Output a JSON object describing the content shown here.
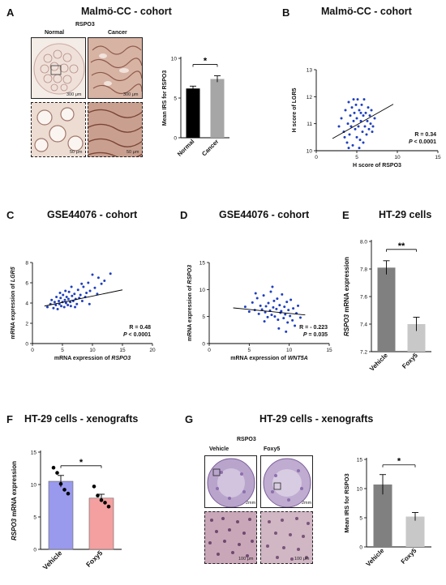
{
  "panels": {
    "A": {
      "letter": "A",
      "title": "Malmö-CC - cohort",
      "stain_label": "RSPO3",
      "col_normal": "Normal",
      "col_cancer": "Cancer",
      "scale_top_left": "300 μm",
      "scale_top_right": "300 μm",
      "scale_bottom_left": "50 μm",
      "scale_bottom_right": "50 μm"
    },
    "B": {
      "letter": "B",
      "title": "Malmö-CC - cohort"
    },
    "C": {
      "letter": "C",
      "title": "GSE44076 - cohort"
    },
    "D": {
      "letter": "D",
      "title": "GSE44076 - cohort"
    },
    "E": {
      "letter": "E",
      "title": "HT-29 cells"
    },
    "F": {
      "letter": "F",
      "title": "HT-29 cells - xenografts"
    },
    "G": {
      "letter": "G",
      "title": "HT-29 cells - xenografts",
      "stain_label": "RSPO3",
      "col_vehicle": "Vehicle",
      "col_foxy5": "Foxy5",
      "scale_top_left": "2mm",
      "scale_top_right": "2mm",
      "scale_bottom_left": "100 μm",
      "scale_bottom_right": "100 μm"
    }
  },
  "chart_data": [
    {
      "id": "A-bar",
      "type": "bar",
      "categories": [
        "Normal",
        "Cancer"
      ],
      "values": [
        6.2,
        7.4
      ],
      "errors": [
        0.3,
        0.4
      ],
      "colors": [
        "#000000",
        "#a6a6a6"
      ],
      "ylabel": "Mean IRS for RSPO3",
      "ylim": [
        0,
        10
      ],
      "yticks": [
        0,
        5,
        10
      ],
      "significance": "*"
    },
    {
      "id": "B-scatter",
      "type": "scatter",
      "xlabel": "H score of RSPO3",
      "ylabel": "H score of LGR5",
      "xlim": [
        0,
        15
      ],
      "ylim": [
        10,
        13
      ],
      "xticks": [
        0,
        5,
        10,
        15
      ],
      "yticks": [
        10,
        11,
        12,
        13
      ],
      "point_color": "#1f3fbf",
      "annotation_r": "R = 0.34",
      "annotation_p": "P < 0.0001",
      "trendline": {
        "x": [
          2,
          9.5
        ],
        "y": [
          10.45,
          11.72
        ]
      },
      "points": [
        [
          2.8,
          10.9
        ],
        [
          3.1,
          11.2
        ],
        [
          3.4,
          10.7
        ],
        [
          3.6,
          11.5
        ],
        [
          3.8,
          10.3
        ],
        [
          3.9,
          11.0
        ],
        [
          4.0,
          11.8
        ],
        [
          4.1,
          10.6
        ],
        [
          4.2,
          11.3
        ],
        [
          4.3,
          10.9
        ],
        [
          4.4,
          11.6
        ],
        [
          4.5,
          10.2
        ],
        [
          4.6,
          11.1
        ],
        [
          4.7,
          11.4
        ],
        [
          4.8,
          10.8
        ],
        [
          4.9,
          11.7
        ],
        [
          5.0,
          10.5
        ],
        [
          5.0,
          11.2
        ],
        [
          5.1,
          11.9
        ],
        [
          5.2,
          10.9
        ],
        [
          5.3,
          11.5
        ],
        [
          5.4,
          10.4
        ],
        [
          5.5,
          11.1
        ],
        [
          5.6,
          11.7
        ],
        [
          5.7,
          10.7
        ],
        [
          5.8,
          11.3
        ],
        [
          5.9,
          11.9
        ],
        [
          6.0,
          10.9
        ],
        [
          6.1,
          11.4
        ],
        [
          6.2,
          10.6
        ],
        [
          6.3,
          11.1
        ],
        [
          6.4,
          11.6
        ],
        [
          6.5,
          10.8
        ],
        [
          6.6,
          11.3
        ],
        [
          6.7,
          11.0
        ],
        [
          6.8,
          11.5
        ],
        [
          7.0,
          10.9
        ],
        [
          7.2,
          11.2
        ],
        [
          4.0,
          10.1
        ],
        [
          5.3,
          10.1
        ],
        [
          4.6,
          11.9
        ],
        [
          5.8,
          10.3
        ],
        [
          3.5,
          10.5
        ],
        [
          6.9,
          10.7
        ],
        [
          5.5,
          11.4
        ]
      ]
    },
    {
      "id": "C-scatter",
      "type": "scatter",
      "xlabel": "mRNA expression of RSPO3",
      "ylabel": "mRNA expression of LGR5",
      "xlim": [
        0,
        20
      ],
      "ylim": [
        0,
        8
      ],
      "xticks": [
        0,
        5,
        10,
        15,
        20
      ],
      "yticks": [
        0,
        2,
        4,
        6,
        8
      ],
      "point_color": "#1f3fbf",
      "annotation_r": "R = 0.48",
      "annotation_p": "P < 0.0001",
      "trendline": {
        "x": [
          2,
          15
        ],
        "y": [
          3.7,
          5.3
        ]
      },
      "points": [
        [
          2.5,
          3.6
        ],
        [
          3.0,
          3.9
        ],
        [
          3.2,
          4.3
        ],
        [
          3.5,
          3.5
        ],
        [
          3.7,
          4.1
        ],
        [
          3.9,
          3.8
        ],
        [
          4.0,
          4.6
        ],
        [
          4.2,
          3.4
        ],
        [
          4.4,
          4.2
        ],
        [
          4.5,
          3.9
        ],
        [
          4.7,
          4.5
        ],
        [
          4.8,
          3.7
        ],
        [
          5.0,
          4.1
        ],
        [
          5.1,
          4.8
        ],
        [
          5.3,
          3.6
        ],
        [
          5.4,
          4.3
        ],
        [
          5.6,
          4.0
        ],
        [
          5.7,
          4.6
        ],
        [
          5.9,
          3.8
        ],
        [
          6.0,
          4.4
        ],
        [
          6.1,
          5.1
        ],
        [
          6.3,
          4.1
        ],
        [
          6.4,
          3.7
        ],
        [
          6.6,
          4.7
        ],
        [
          6.8,
          4.2
        ],
        [
          7.0,
          4.9
        ],
        [
          7.2,
          4.4
        ],
        [
          7.4,
          3.9
        ],
        [
          7.6,
          5.3
        ],
        [
          7.8,
          4.5
        ],
        [
          8.0,
          4.8
        ],
        [
          8.3,
          4.2
        ],
        [
          8.5,
          5.6
        ],
        [
          8.8,
          4.6
        ],
        [
          9.0,
          5.0
        ],
        [
          9.3,
          6.0
        ],
        [
          9.6,
          5.2
        ],
        [
          10.0,
          6.8
        ],
        [
          10.4,
          5.5
        ],
        [
          11.0,
          6.5
        ],
        [
          11.5,
          5.9
        ],
        [
          12.0,
          6.2
        ],
        [
          13.0,
          6.9
        ],
        [
          9.5,
          3.9
        ],
        [
          8.2,
          5.9
        ],
        [
          6.5,
          5.6
        ],
        [
          5.5,
          5.2
        ],
        [
          4.6,
          5.0
        ],
        [
          7.1,
          3.6
        ],
        [
          10.8,
          4.9
        ]
      ]
    },
    {
      "id": "D-scatter",
      "type": "scatter",
      "xlabel": "mRNA expression of WNT5A",
      "ylabel": "mRNA expression of RSPO3",
      "xlim": [
        0,
        15
      ],
      "ylim": [
        0,
        15
      ],
      "xticks": [
        0,
        5,
        10,
        15
      ],
      "yticks": [
        0,
        5,
        10,
        15
      ],
      "point_color": "#1f3fbf",
      "annotation_r": "R = - 0.223",
      "annotation_p": "P = 0.035",
      "trendline": {
        "x": [
          3,
          12
        ],
        "y": [
          6.6,
          5.3
        ]
      },
      "points": [
        [
          4.5,
          6.8
        ],
        [
          5.0,
          5.9
        ],
        [
          5.4,
          7.6
        ],
        [
          5.7,
          6.2
        ],
        [
          6.0,
          8.4
        ],
        [
          6.2,
          5.5
        ],
        [
          6.4,
          7.0
        ],
        [
          6.6,
          6.3
        ],
        [
          6.8,
          8.9
        ],
        [
          7.0,
          5.8
        ],
        [
          7.1,
          6.9
        ],
        [
          7.3,
          4.9
        ],
        [
          7.4,
          7.5
        ],
        [
          7.6,
          6.1
        ],
        [
          7.7,
          9.6
        ],
        [
          7.8,
          5.3
        ],
        [
          8.0,
          6.7
        ],
        [
          8.1,
          7.9
        ],
        [
          8.2,
          5.0
        ],
        [
          8.4,
          6.4
        ],
        [
          8.5,
          8.3
        ],
        [
          8.6,
          4.4
        ],
        [
          8.8,
          7.1
        ],
        [
          8.9,
          5.7
        ],
        [
          9.0,
          6.0
        ],
        [
          9.1,
          9.1
        ],
        [
          9.3,
          4.7
        ],
        [
          9.4,
          6.8
        ],
        [
          9.5,
          5.4
        ],
        [
          9.7,
          7.7
        ],
        [
          9.8,
          3.9
        ],
        [
          9.9,
          6.2
        ],
        [
          10.1,
          5.1
        ],
        [
          10.2,
          8.1
        ],
        [
          10.4,
          4.3
        ],
        [
          10.5,
          6.5
        ],
        [
          10.7,
          3.3
        ],
        [
          10.9,
          5.6
        ],
        [
          11.1,
          7.0
        ],
        [
          11.4,
          4.8
        ],
        [
          7.9,
          10.5
        ],
        [
          8.7,
          2.8
        ],
        [
          6.9,
          4.1
        ],
        [
          9.6,
          2.2
        ],
        [
          5.8,
          9.3
        ]
      ]
    },
    {
      "id": "E-bar",
      "type": "bar",
      "categories": [
        "Vehicle",
        "Foxy5"
      ],
      "values": [
        7.81,
        7.4
      ],
      "errors": [
        0.05,
        0.05
      ],
      "colors": [
        "#808080",
        "#c8c8c8"
      ],
      "ylabel": "RSPO3 mRNA expression",
      "ylim": [
        7.2,
        8.0
      ],
      "yticks": [
        7.2,
        7.4,
        7.6,
        7.8,
        8.0
      ],
      "significance": "**"
    },
    {
      "id": "F-bar",
      "type": "bar",
      "categories": [
        "Vehicle",
        "Foxy5"
      ],
      "values": [
        10.5,
        7.9
      ],
      "errors": [
        0.9,
        0.6
      ],
      "colors": [
        "#9999ee",
        "#f4a0a0"
      ],
      "ylabel": "RSPO3 mRNA expression",
      "ylim": [
        0,
        15
      ],
      "yticks": [
        0,
        5,
        10,
        15
      ],
      "significance": "*",
      "dots": [
        [
          12.6,
          11.8,
          10.1,
          9.2,
          8.6
        ],
        [
          9.7,
          8.3,
          7.6,
          7.2,
          6.6
        ]
      ]
    },
    {
      "id": "G-bar",
      "type": "bar",
      "categories": [
        "Vehicle",
        "Foxy5"
      ],
      "values": [
        10.7,
        5.2
      ],
      "errors": [
        1.7,
        0.7
      ],
      "colors": [
        "#808080",
        "#c8c8c8"
      ],
      "ylabel": "Mean IRS for RSPO3",
      "ylim": [
        0,
        15
      ],
      "yticks": [
        0,
        5,
        10,
        15
      ],
      "significance": "*"
    }
  ]
}
